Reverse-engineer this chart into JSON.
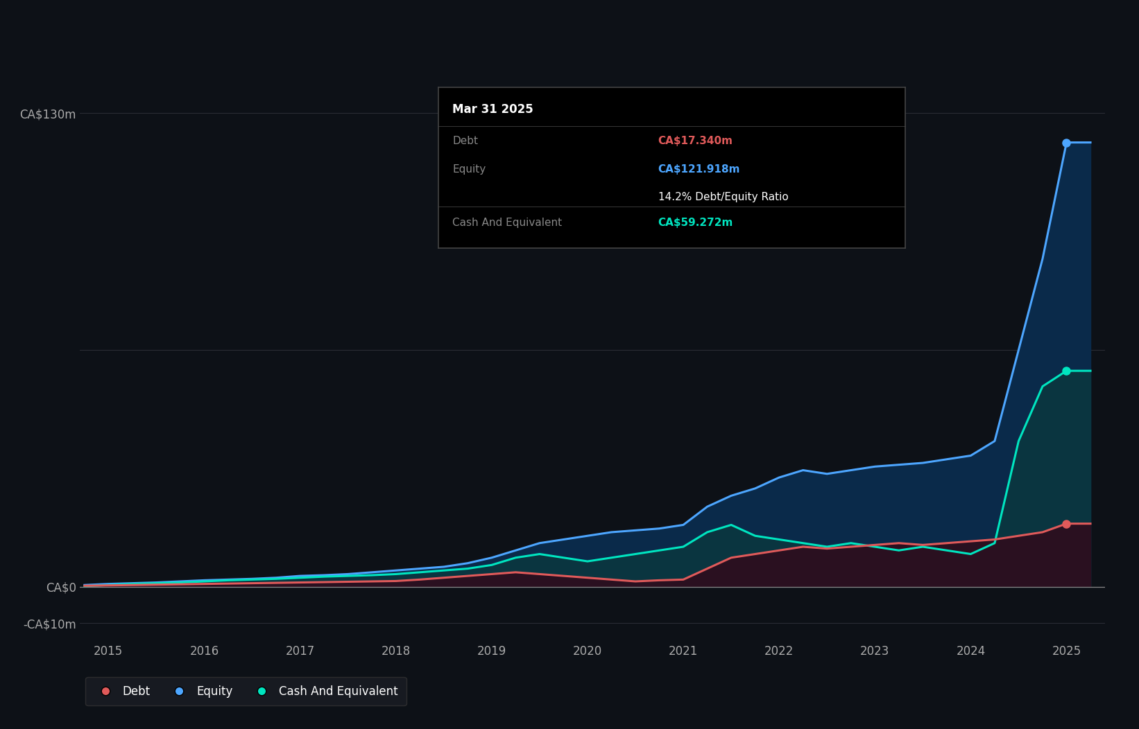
{
  "background_color": "#0d1117",
  "plot_bg_color": "#0d1117",
  "text_color": "#aaaaaa",
  "debt_color": "#e05a5a",
  "equity_color": "#4da6ff",
  "cash_color": "#00e5c0",
  "equity_fill": "#0a2a4a",
  "cash_fill": "#0a3540",
  "debt_fill": "#2a1020",
  "grid_color": "#2a2d35",
  "ylim": [
    -15,
    145
  ],
  "xlim": [
    2014.7,
    2025.4
  ],
  "xtick_years": [
    2015,
    2016,
    2017,
    2018,
    2019,
    2020,
    2021,
    2022,
    2023,
    2024,
    2025
  ],
  "tooltip_bg": "#000000",
  "tooltip_border": "#444444",
  "tooltip_title": "Mar 31 2025",
  "tooltip_debt_label": "Debt",
  "tooltip_debt_value": "CA$17.340m",
  "tooltip_equity_label": "Equity",
  "tooltip_equity_value": "CA$121.918m",
  "tooltip_ratio": "14.2% Debt/Equity Ratio",
  "tooltip_cash_label": "Cash And Equivalent",
  "tooltip_cash_value": "CA$59.272m",
  "dates": [
    2014.75,
    2015.0,
    2015.25,
    2015.5,
    2015.75,
    2016.0,
    2016.25,
    2016.5,
    2016.75,
    2017.0,
    2017.25,
    2017.5,
    2017.75,
    2018.0,
    2018.25,
    2018.5,
    2018.75,
    2019.0,
    2019.25,
    2019.5,
    2019.75,
    2020.0,
    2020.25,
    2020.5,
    2020.75,
    2021.0,
    2021.25,
    2021.5,
    2021.75,
    2022.0,
    2022.25,
    2022.5,
    2022.75,
    2023.0,
    2023.25,
    2023.5,
    2023.75,
    2024.0,
    2024.25,
    2024.5,
    2024.75,
    2025.0,
    2025.25
  ],
  "equity": [
    0.5,
    0.8,
    1.0,
    1.2,
    1.5,
    1.8,
    2.0,
    2.2,
    2.5,
    3.0,
    3.2,
    3.5,
    4.0,
    4.5,
    5.0,
    5.5,
    6.5,
    8.0,
    10.0,
    12.0,
    13.0,
    14.0,
    15.0,
    15.5,
    16.0,
    17.0,
    22.0,
    25.0,
    27.0,
    30.0,
    32.0,
    31.0,
    32.0,
    33.0,
    33.5,
    34.0,
    35.0,
    36.0,
    40.0,
    65.0,
    90.0,
    121.918,
    121.918
  ],
  "debt": [
    0.3,
    0.4,
    0.5,
    0.6,
    0.7,
    0.8,
    0.9,
    1.0,
    1.1,
    1.2,
    1.3,
    1.4,
    1.5,
    1.6,
    2.0,
    2.5,
    3.0,
    3.5,
    4.0,
    3.5,
    3.0,
    2.5,
    2.0,
    1.5,
    1.8,
    2.0,
    5.0,
    8.0,
    9.0,
    10.0,
    11.0,
    10.5,
    11.0,
    11.5,
    12.0,
    11.5,
    12.0,
    12.5,
    13.0,
    14.0,
    15.0,
    17.34,
    17.34
  ],
  "cash": [
    0.2,
    0.5,
    0.8,
    1.0,
    1.2,
    1.5,
    1.8,
    2.0,
    2.2,
    2.5,
    2.8,
    3.0,
    3.2,
    3.5,
    4.0,
    4.5,
    5.0,
    6.0,
    8.0,
    9.0,
    8.0,
    7.0,
    8.0,
    9.0,
    10.0,
    11.0,
    15.0,
    17.0,
    14.0,
    13.0,
    12.0,
    11.0,
    12.0,
    11.0,
    10.0,
    11.0,
    10.0,
    9.0,
    12.0,
    40.0,
    55.0,
    59.272,
    59.272
  ],
  "legend_items": [
    {
      "label": "Debt",
      "color": "#e05a5a"
    },
    {
      "label": "Equity",
      "color": "#4da6ff"
    },
    {
      "label": "Cash And Equivalent",
      "color": "#00e5c0"
    }
  ]
}
